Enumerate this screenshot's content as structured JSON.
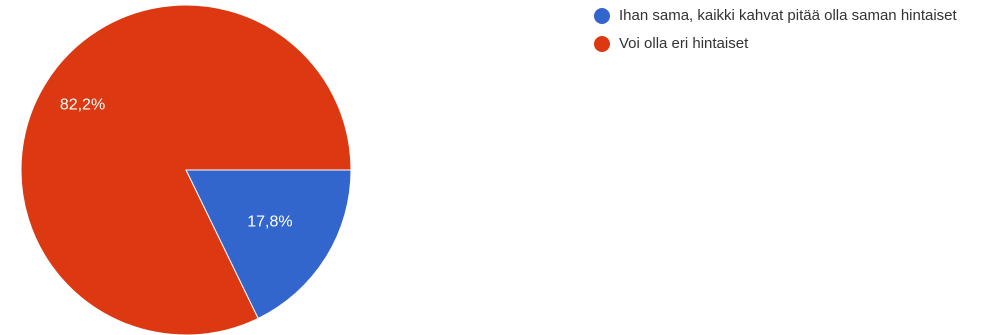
{
  "chart_data": {
    "type": "pie",
    "categories": [
      "Ihan sama, kaikki kahvat pitää olla saman hintaiset",
      "Voi olla eri hintaiset"
    ],
    "values": [
      17.8,
      82.2
    ],
    "data_labels": [
      "17,8%",
      "82,2%"
    ],
    "colors": [
      "#3366cc",
      "#dc3912"
    ],
    "legend_position": "right",
    "title": ""
  }
}
